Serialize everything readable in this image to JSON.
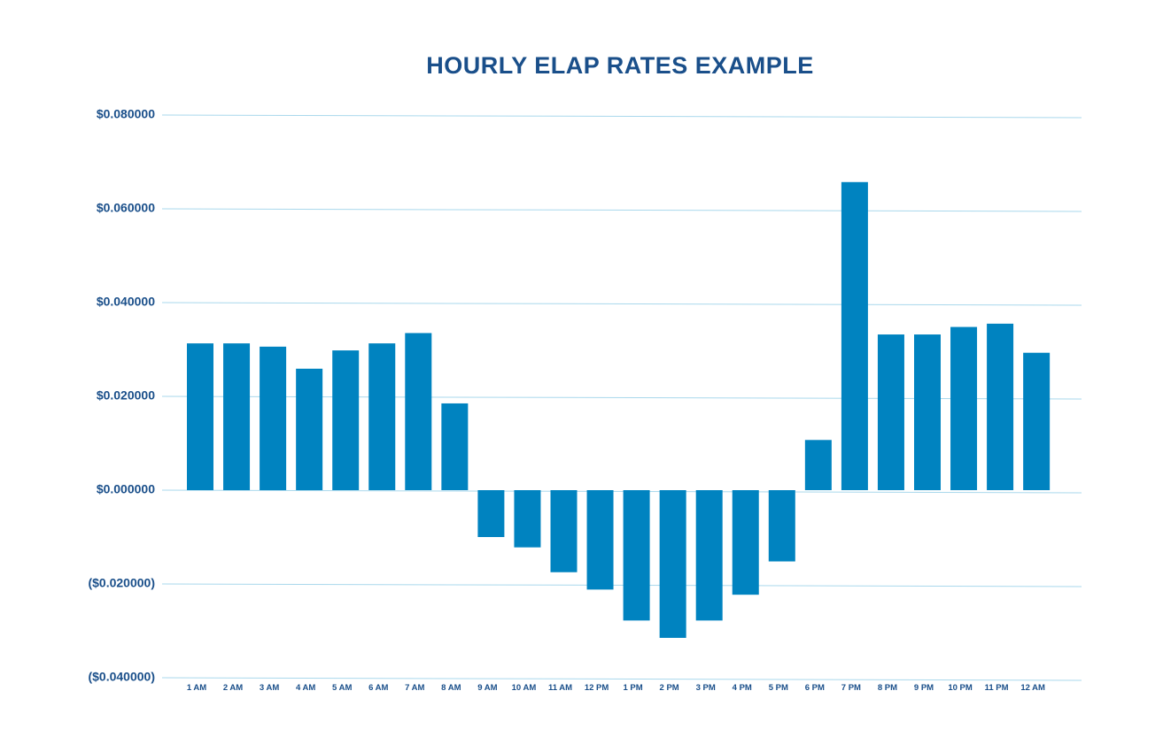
{
  "chart_data": {
    "type": "bar",
    "title": "HOURLY ELAP RATES EXAMPLE",
    "xlabel": "",
    "ylabel": "",
    "categories": [
      "1 AM",
      "2 AM",
      "3 AM",
      "4 AM",
      "5 AM",
      "6 AM",
      "7 AM",
      "8 AM",
      "9 AM",
      "10 AM",
      "11 AM",
      "12 PM",
      "1 PM",
      "2 PM",
      "3 PM",
      "4 PM",
      "5 PM",
      "6 PM",
      "7 PM",
      "8 PM",
      "9 PM",
      "10 PM",
      "11 PM",
      "12 AM"
    ],
    "values": [
      0.0313,
      0.0313,
      0.0306,
      0.0259,
      0.0298,
      0.0313,
      0.0335,
      0.0185,
      -0.01,
      -0.0122,
      -0.0175,
      -0.0212,
      -0.0278,
      -0.0315,
      -0.0278,
      -0.0223,
      -0.0152,
      0.0107,
      0.0657,
      0.0332,
      0.0332,
      0.0348,
      0.0355,
      0.0293
    ],
    "ylim": [
      -0.04,
      0.08
    ],
    "yticks": [
      0.08,
      0.06,
      0.04,
      0.02,
      0.0,
      -0.02,
      -0.04
    ],
    "ytick_labels": [
      "$0.080000",
      "$0.060000",
      "$0.040000",
      "$0.020000",
      "$0.000000",
      "($0.020000)",
      "($0.040000)"
    ],
    "grid": true,
    "legend": "none",
    "colors": {
      "bar": "#0083c0",
      "text": "#1a4f8a",
      "grid": "#a9d8ec"
    }
  }
}
